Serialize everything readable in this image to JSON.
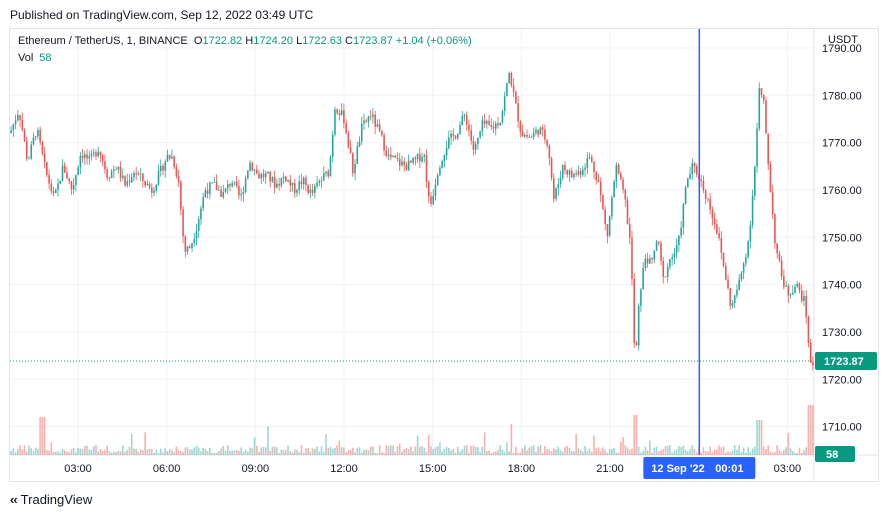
{
  "published": "Published on TradingView.com, Sep 12, 2022 03:49 UTC",
  "legend": {
    "symbol": "Ethereum / TetherUS, 1, BINANCE",
    "o_label": "O",
    "o": "1722.82",
    "h_label": "H",
    "h": "1724.20",
    "l_label": "L",
    "l": "1722.63",
    "c_label": "C",
    "c": "1723.87",
    "change": "+1.04 (+0.06%)",
    "vol_label": "Vol",
    "vol": "58"
  },
  "axis_unit": "USDT",
  "brand": "TradingView",
  "colors": {
    "up": "#26a69a",
    "down": "#ef5350",
    "crosshair": "#2962ff",
    "price_tag": "#089981"
  },
  "chart_data": {
    "type": "candlestick",
    "ylim": [
      1704,
      1794
    ],
    "y_ticks": [
      "1790.00",
      "1780.00",
      "1770.00",
      "1760.00",
      "1750.00",
      "1740.00",
      "1730.00",
      "1720.00",
      "1710.00"
    ],
    "y_tick_values": [
      1790,
      1780,
      1770,
      1760,
      1750,
      1740,
      1730,
      1720,
      1710
    ],
    "x_ticks": [
      "03:00",
      "06:00",
      "09:00",
      "12:00",
      "15:00",
      "18:00",
      "21:00",
      "03:00"
    ],
    "x_tick_hours": [
      3,
      6,
      9,
      12,
      15,
      18,
      21,
      27
    ],
    "x_range_hours": [
      0.7,
      27.9
    ],
    "last_price": 1723.87,
    "last_price_label": "1723.87",
    "volume_label": "58",
    "crosshair_label_date": "12 Sep '22",
    "crosshair_label_time": "00:01",
    "crosshair_hour": 24.02,
    "price_path": [
      [
        0.7,
        1772
      ],
      [
        1.0,
        1777
      ],
      [
        1.3,
        1766
      ],
      [
        1.6,
        1773
      ],
      [
        1.9,
        1764
      ],
      [
        2.2,
        1758
      ],
      [
        2.5,
        1765
      ],
      [
        2.8,
        1760
      ],
      [
        3.1,
        1768
      ],
      [
        3.4,
        1766
      ],
      [
        3.7,
        1769
      ],
      [
        4.0,
        1763
      ],
      [
        4.3,
        1765
      ],
      [
        4.6,
        1761
      ],
      [
        4.9,
        1764
      ],
      [
        5.2,
        1762
      ],
      [
        5.5,
        1760
      ],
      [
        5.8,
        1764
      ],
      [
        6.0,
        1767
      ],
      [
        6.2,
        1767
      ],
      [
        6.4,
        1762
      ],
      [
        6.6,
        1747
      ],
      [
        6.8,
        1748
      ],
      [
        7.0,
        1752
      ],
      [
        7.3,
        1760
      ],
      [
        7.6,
        1761
      ],
      [
        7.9,
        1759
      ],
      [
        8.2,
        1762
      ],
      [
        8.5,
        1758
      ],
      [
        8.8,
        1766
      ],
      [
        9.1,
        1763
      ],
      [
        9.4,
        1763
      ],
      [
        9.7,
        1761
      ],
      [
        10.0,
        1763
      ],
      [
        10.3,
        1760
      ],
      [
        10.6,
        1762
      ],
      [
        10.9,
        1759
      ],
      [
        11.2,
        1762
      ],
      [
        11.5,
        1764
      ],
      [
        11.7,
        1778
      ],
      [
        12.0,
        1775
      ],
      [
        12.3,
        1764
      ],
      [
        12.6,
        1773
      ],
      [
        12.9,
        1776
      ],
      [
        13.2,
        1772
      ],
      [
        13.5,
        1767
      ],
      [
        13.8,
        1766
      ],
      [
        14.1,
        1765
      ],
      [
        14.4,
        1766
      ],
      [
        14.7,
        1768
      ],
      [
        14.9,
        1756
      ],
      [
        15.2,
        1765
      ],
      [
        15.5,
        1770
      ],
      [
        15.8,
        1772
      ],
      [
        16.1,
        1776
      ],
      [
        16.4,
        1768
      ],
      [
        16.7,
        1774
      ],
      [
        17.0,
        1773
      ],
      [
        17.3,
        1775
      ],
      [
        17.6,
        1785
      ],
      [
        17.8,
        1778
      ],
      [
        18.0,
        1772
      ],
      [
        18.3,
        1771
      ],
      [
        18.6,
        1773
      ],
      [
        18.9,
        1770
      ],
      [
        19.1,
        1758
      ],
      [
        19.4,
        1765
      ],
      [
        19.7,
        1763
      ],
      [
        20.0,
        1764
      ],
      [
        20.3,
        1767
      ],
      [
        20.6,
        1762
      ],
      [
        20.9,
        1750
      ],
      [
        21.2,
        1765
      ],
      [
        21.5,
        1758
      ],
      [
        21.7,
        1748
      ],
      [
        21.85,
        1722
      ],
      [
        22.0,
        1738
      ],
      [
        22.2,
        1746
      ],
      [
        22.4,
        1744
      ],
      [
        22.6,
        1750
      ],
      [
        22.8,
        1741
      ],
      [
        23.0,
        1745
      ],
      [
        23.3,
        1748
      ],
      [
        23.6,
        1762
      ],
      [
        23.8,
        1765
      ],
      [
        24.0,
        1763
      ],
      [
        24.3,
        1758
      ],
      [
        24.6,
        1752
      ],
      [
        24.9,
        1742
      ],
      [
        25.1,
        1735
      ],
      [
        25.4,
        1741
      ],
      [
        25.7,
        1750
      ],
      [
        25.9,
        1765
      ],
      [
        26.05,
        1781
      ],
      [
        26.2,
        1778
      ],
      [
        26.4,
        1762
      ],
      [
        26.6,
        1748
      ],
      [
        26.8,
        1742
      ],
      [
        27.0,
        1738
      ],
      [
        27.3,
        1740
      ],
      [
        27.6,
        1736
      ],
      [
        27.8,
        1722
      ],
      [
        27.9,
        1723.87
      ]
    ]
  }
}
